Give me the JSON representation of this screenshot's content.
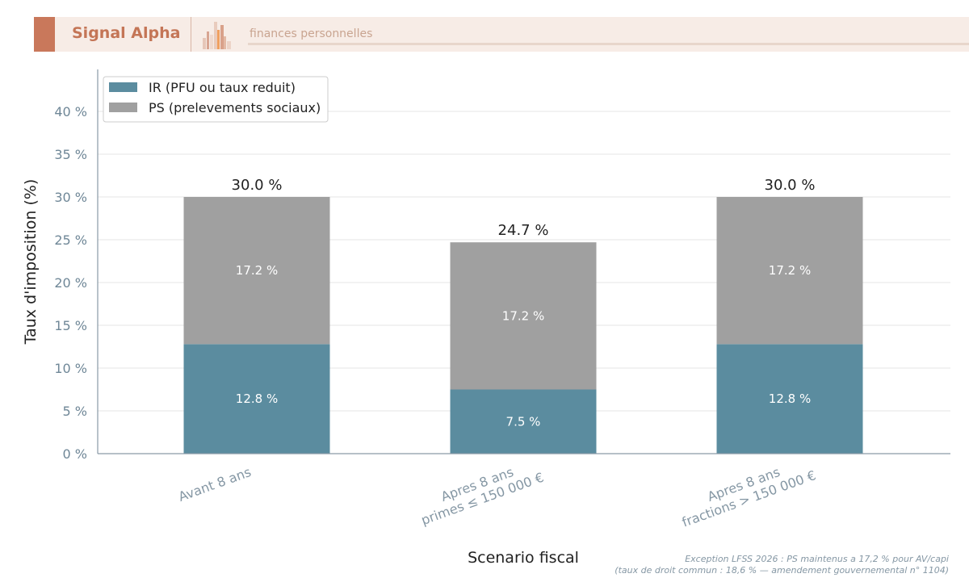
{
  "header": {
    "brand": "Signal Alpha",
    "tagline": "finances personnelles",
    "logo_icon": "bar-chart-logo-icon"
  },
  "footnote": {
    "line1": "Exception LFSS 2026 : PS maintenus a 17,2 % pour AV/capi",
    "line2": "(taux de droit commun : 18,6 % — amendement gouvernemental n° 1104)"
  },
  "chart_data": {
    "type": "bar",
    "stacked": true,
    "categories": [
      [
        "Avant 8 ans"
      ],
      [
        "Apres 8 ans",
        "primes ≤ 150 000 €"
      ],
      [
        "Apres 8 ans",
        "fractions > 150 000 €"
      ]
    ],
    "series": [
      {
        "name": "IR (PFU ou taux reduit)",
        "values": [
          12.8,
          7.5,
          12.8
        ],
        "labels": [
          "12.8 %",
          "7.5 %",
          "12.8 %"
        ],
        "color": "#5b8c9f"
      },
      {
        "name": "PS (prelevements sociaux)",
        "values": [
          17.2,
          17.2,
          17.2
        ],
        "labels": [
          "17.2 %",
          "17.2 %",
          "17.2 %"
        ],
        "color": "#a0a0a0"
      }
    ],
    "totals": [
      30.0,
      24.7,
      30.0
    ],
    "total_labels": [
      "30.0 %",
      "24.7 %",
      "30.0 %"
    ],
    "xlabel": "Scenario fiscal",
    "ylabel": "Taux d'imposition (%)",
    "ylim": [
      0,
      45
    ],
    "yticks": [
      0,
      5,
      10,
      15,
      20,
      25,
      30,
      35,
      40
    ],
    "ytick_labels": [
      "0 %",
      "5 %",
      "10 %",
      "15 %",
      "20 %",
      "25 %",
      "30 %",
      "35 %",
      "40 %"
    ],
    "grid": true,
    "legend_position": "top-left"
  }
}
